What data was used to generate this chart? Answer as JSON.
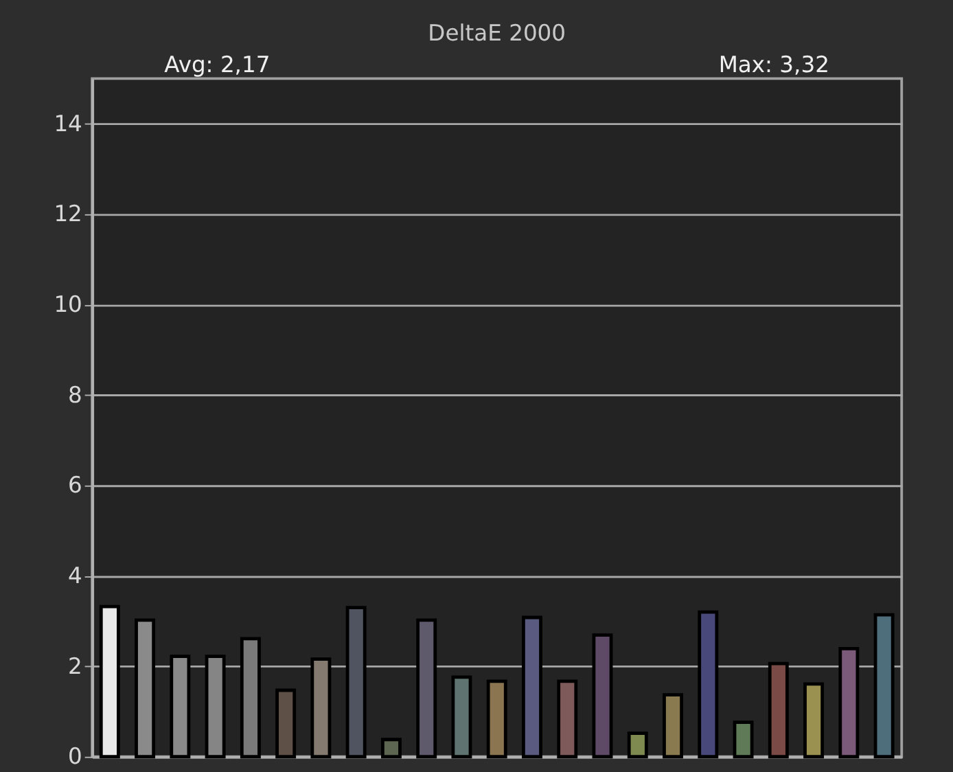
{
  "chart_data": {
    "type": "bar",
    "title": "DeltaE 2000",
    "annotations": [
      "Avg: 2,17",
      "Max: 3,32"
    ],
    "categories": [
      null,
      null,
      null,
      null,
      null,
      null,
      null,
      null,
      null,
      null,
      null,
      null,
      null,
      null,
      null,
      null,
      null,
      null,
      null,
      null,
      null,
      null,
      null
    ],
    "values": [
      3.32,
      3.02,
      2.22,
      2.22,
      2.61,
      1.47,
      2.16,
      3.3,
      0.38,
      3.02,
      1.76,
      1.67,
      3.08,
      1.67,
      2.69,
      0.52,
      1.37,
      3.2,
      0.76,
      2.06,
      1.61,
      2.39,
      3.14
    ],
    "colors": [
      "#e8e8e8",
      "#8a8a8a",
      "#8a8a8a",
      "#858585",
      "#7a7a7a",
      "#5e5046",
      "#857a70",
      "#4f5460",
      "#5c6650",
      "#5e5a6c",
      "#5f7470",
      "#8a7550",
      "#5a5a80",
      "#7e5a5a",
      "#5e4a66",
      "#7e8a50",
      "#8a7a50",
      "#48487a",
      "#5f7a56",
      "#7a4a46",
      "#9a9050",
      "#7a5a78",
      "#4e6e7c"
    ],
    "ylim": [
      0,
      15
    ],
    "yticks": [
      0,
      2,
      4,
      6,
      8,
      10,
      12,
      14
    ],
    "grid": "y",
    "tick_labels": "y"
  }
}
